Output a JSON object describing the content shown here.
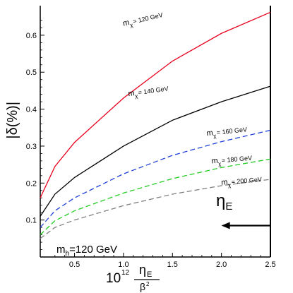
{
  "chart_data": {
    "type": "line",
    "title": "",
    "xlim": [
      0.15,
      2.5
    ],
    "ylim": [
      0.0,
      0.68
    ],
    "x_ticks": [
      {
        "value": 0.5,
        "label": "0.5"
      },
      {
        "value": 1.0,
        "label": "1.0"
      },
      {
        "value": 1.5,
        "label": "1.5"
      },
      {
        "value": 2.0,
        "label": "2.0"
      },
      {
        "value": 2.5,
        "label": "2.5"
      }
    ],
    "y_ticks": [
      {
        "value": 0.1,
        "label": "0.1"
      },
      {
        "value": 0.2,
        "label": "0.2"
      },
      {
        "value": 0.3,
        "label": "0.3"
      },
      {
        "value": 0.4,
        "label": "0.4"
      },
      {
        "value": 0.5,
        "label": "0.5"
      },
      {
        "value": 0.6,
        "label": "0.6"
      }
    ],
    "xlabel": {
      "prefix": "10",
      "exponent": "12",
      "numerator": "η",
      "numerator_sub": "E",
      "denominator": "β",
      "denominator_sup": "2"
    },
    "ylabel": "|δ(%)|",
    "series": [
      {
        "name": "m_χ = 120 GeV",
        "label_main": "m",
        "label_sub": "χ",
        "label_rest": "= 120 GeV",
        "color": "#e8001e",
        "dash": "solid",
        "x": [
          0.15,
          0.3,
          0.5,
          1.0,
          1.5,
          2.0,
          2.5
        ],
        "y": [
          0.16,
          0.245,
          0.31,
          0.43,
          0.53,
          0.605,
          0.662
        ]
      },
      {
        "name": "m_χ = 140 GeV",
        "label_main": "m",
        "label_sub": "χ",
        "label_rest": "= 140 GeV",
        "color": "#000000",
        "dash": "solid",
        "x": [
          0.15,
          0.3,
          0.5,
          1.0,
          1.5,
          2.0,
          2.5
        ],
        "y": [
          0.11,
          0.17,
          0.215,
          0.3,
          0.37,
          0.42,
          0.462
        ]
      },
      {
        "name": "m_χ = 160 GeV",
        "label_main": "m",
        "label_sub": "χ",
        "label_rest": "= 160 GeV",
        "color": "#1f3fd6",
        "dash": "dashed",
        "x": [
          0.15,
          0.3,
          0.5,
          1.0,
          1.5,
          2.0,
          2.5
        ],
        "y": [
          0.08,
          0.125,
          0.16,
          0.225,
          0.275,
          0.312,
          0.343
        ]
      },
      {
        "name": "m_χ = 180 GeV",
        "label_main": "m",
        "label_sub": "χ",
        "label_rest": "= 180 GeV",
        "color": "#22cc22",
        "dash": "dashed",
        "x": [
          0.15,
          0.3,
          0.5,
          1.0,
          1.5,
          2.0,
          2.5
        ],
        "y": [
          0.06,
          0.098,
          0.125,
          0.173,
          0.212,
          0.242,
          0.265
        ]
      },
      {
        "name": "m_χ = 200 GeV",
        "label_main": "m",
        "label_sub": "χ",
        "label_rest": "= 200 GeV",
        "color": "#808080",
        "dash": "dashed",
        "x": [
          0.15,
          0.3,
          0.5,
          1.0,
          1.5,
          2.0,
          2.5
        ],
        "y": [
          0.05,
          0.08,
          0.1,
          0.139,
          0.17,
          0.193,
          0.21
        ]
      }
    ],
    "annotations": {
      "mh": {
        "main": "m",
        "sub": "h",
        "rest": "=120 GeV"
      },
      "arrow": {
        "main": "η",
        "sub": "E",
        "y_value": 0.085,
        "x_from": 2.5,
        "x_to": 2.0
      }
    }
  }
}
